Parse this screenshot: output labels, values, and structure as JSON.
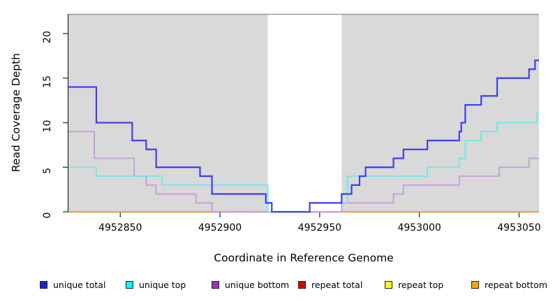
{
  "figure": {
    "xlabel": "Coordinate in Reference Genome",
    "ylabel": "Read Coverage Depth"
  },
  "legend": {
    "items": [
      {
        "label": "unique total",
        "color": "#2121D8"
      },
      {
        "label": "unique top",
        "color": "#00FFFF"
      },
      {
        "label": "unique bottom",
        "color": "#9933CC"
      },
      {
        "label": "repeat total",
        "color": "#DD0000"
      },
      {
        "label": "repeat top",
        "color": "#FFFF00"
      },
      {
        "label": "repeat bottom",
        "color": "#FFA500"
      }
    ]
  },
  "chart_data": {
    "type": "line",
    "subtype": "step-coverage",
    "title": "",
    "xlabel": "Coordinate in Reference Genome",
    "ylabel": "Read Coverage Depth",
    "xlim": [
      4952824,
      4953060
    ],
    "ylim": [
      0,
      22.2
    ],
    "x_ticks": [
      4952850,
      4952900,
      4952950,
      4953000,
      4953050
    ],
    "y_ticks": [
      0,
      5,
      10,
      15,
      20
    ],
    "grid": false,
    "legend_position": "bottom",
    "plot_bg": "#D9D9D9",
    "gap_region": {
      "x_start": 4952924,
      "x_end": 4952961,
      "color": "#FFFFFF"
    },
    "series": [
      {
        "name": "repeat total",
        "line_color": "#DD0000",
        "line_width": 1.5,
        "points": [
          [
            4952824,
            0
          ]
        ]
      },
      {
        "name": "repeat top",
        "line_color": "#FFFF00",
        "line_width": 1.5,
        "points": [
          [
            4952824,
            0
          ]
        ]
      },
      {
        "name": "repeat bottom",
        "line_color": "#FF9E2C",
        "line_width": 2,
        "points": [
          [
            4952824,
            0
          ]
        ]
      },
      {
        "name": "unique bottom",
        "line_color": "#C49BDE",
        "line_width": 1.8,
        "points": [
          [
            4952824,
            9
          ],
          [
            4952837,
            6
          ],
          [
            4952857,
            4
          ],
          [
            4952863,
            3
          ],
          [
            4952868,
            2
          ],
          [
            4952888,
            1
          ],
          [
            4952896,
            0
          ],
          [
            4952961,
            1
          ],
          [
            4952987,
            2
          ],
          [
            4952992,
            3
          ],
          [
            4953020,
            4
          ],
          [
            4953040,
            5
          ],
          [
            4953055,
            6
          ]
        ]
      },
      {
        "name": "unique top",
        "line_color": "#67E9E9",
        "line_width": 1.8,
        "points": [
          [
            4952824,
            5
          ],
          [
            4952838,
            4
          ],
          [
            4952871,
            3
          ],
          [
            4952924,
            0
          ],
          [
            4952945,
            1
          ],
          [
            4952964,
            4
          ],
          [
            4953004,
            5
          ],
          [
            4953020,
            6
          ],
          [
            4953023,
            8
          ],
          [
            4953031,
            9
          ],
          [
            4953039,
            10
          ],
          [
            4953059,
            11
          ]
        ]
      },
      {
        "name": "unique total",
        "line_color": "#3E3EEC",
        "line_width": 2.2,
        "points": [
          [
            4952824,
            14
          ],
          [
            4952838,
            10
          ],
          [
            4952856,
            8
          ],
          [
            4952863,
            7
          ],
          [
            4952868,
            5
          ],
          [
            4952890,
            4
          ],
          [
            4952896,
            2
          ],
          [
            4952923,
            1
          ],
          [
            4952926,
            0
          ],
          [
            4952945,
            1
          ],
          [
            4952961,
            2
          ],
          [
            4952966,
            3
          ],
          [
            4952970,
            4
          ],
          [
            4952973,
            5
          ],
          [
            4952987,
            6
          ],
          [
            4952992,
            7
          ],
          [
            4953004,
            8
          ],
          [
            4953020,
            9
          ],
          [
            4953021,
            10
          ],
          [
            4953023,
            12
          ],
          [
            4953031,
            13
          ],
          [
            4953039,
            15
          ],
          [
            4953055,
            16
          ],
          [
            4953058,
            17
          ]
        ]
      }
    ]
  }
}
